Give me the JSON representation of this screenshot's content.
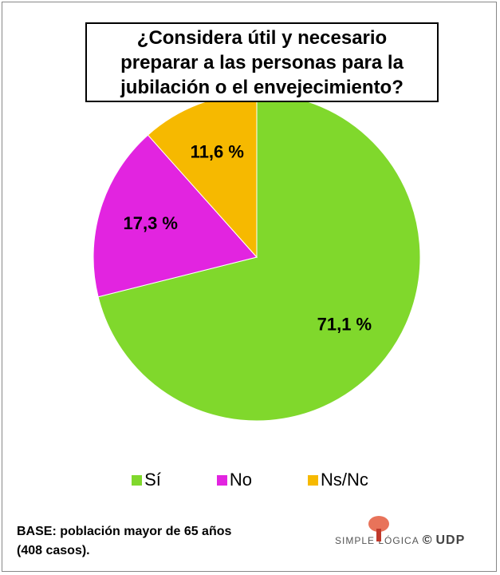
{
  "chart_data": {
    "type": "pie",
    "title": [
      "¿Considera útil y necesario",
      "preparar a las personas para la",
      "jubilación o el envejecimiento?"
    ],
    "categories": [
      "Sí",
      "No",
      "Ns/Nc"
    ],
    "values": [
      71.1,
      17.3,
      11.6
    ],
    "value_labels": [
      "71,1 %",
      "17,3 %",
      "11,6 %"
    ],
    "colors": [
      "#80d82c",
      "#e224e0",
      "#f6b900"
    ],
    "legend": "bottom"
  },
  "note": "BASE: población mayor de 65 años (408 casos).",
  "logo": {
    "text": "SIMPLE LÓGICA",
    "copyright": "©",
    "org": "UDP"
  }
}
